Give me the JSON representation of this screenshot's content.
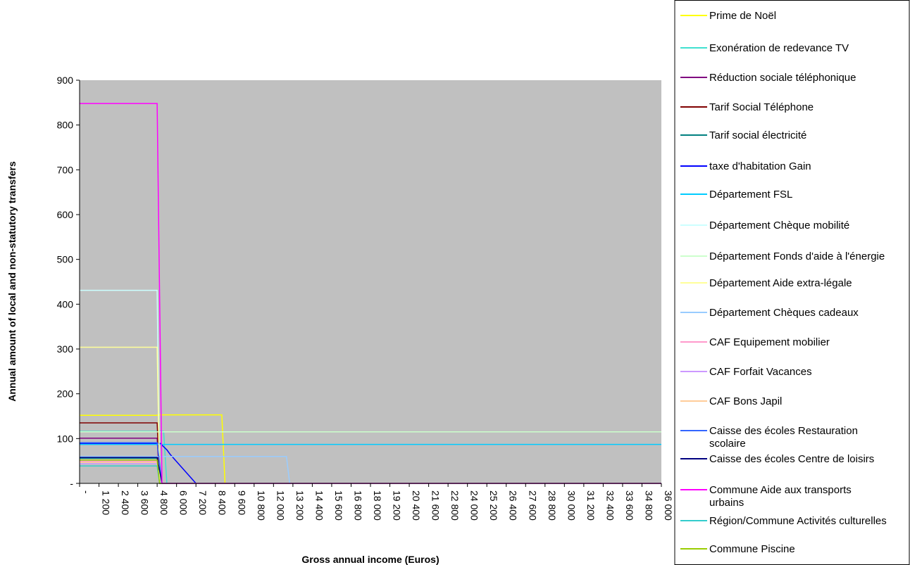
{
  "chart_data": {
    "type": "line",
    "title": "",
    "xlabel": "Gross annual income (Euros)",
    "ylabel": "Annual amount of local and non-statutory transfers",
    "xlim": [
      0,
      36000
    ],
    "ylim": [
      0,
      900
    ],
    "grid": false,
    "plot_background": "#c0c0c0",
    "legend_position": "right",
    "x_tick_labels": [
      "-",
      "1 200",
      "2 400",
      "3 600",
      "4 800",
      "6 000",
      "7 200",
      "8 400",
      "9 600",
      "10 800",
      "12 000",
      "13 200",
      "14 400",
      "15 600",
      "16 800",
      "18 000",
      "19 200",
      "20 400",
      "21 600",
      "22 800",
      "24 000",
      "25 200",
      "26 400",
      "27 600",
      "28 800",
      "30 000",
      "31 200",
      "32 400",
      "33 600",
      "34 800",
      "36 000"
    ],
    "y_ticks": [
      0,
      100,
      200,
      300,
      400,
      500,
      600,
      700,
      800,
      900
    ],
    "y_tick_labels": [
      "-",
      "100",
      "200",
      "300",
      "400",
      "500",
      "600",
      "700",
      "800",
      "900"
    ],
    "series": [
      {
        "name": "Prime de Noël",
        "color": "#ffff00",
        "x": [
          0,
          4800,
          4850,
          8800,
          9000,
          36000
        ],
        "y": [
          152,
          152,
          153,
          153,
          0,
          0
        ]
      },
      {
        "name": "Exonération de redevance TV",
        "color": "#40e0d0",
        "x": [
          0,
          4800,
          5200,
          5400,
          36000
        ],
        "y": [
          116,
          116,
          116,
          0,
          0
        ]
      },
      {
        "name": "Réduction sociale téléphonique",
        "color": "#800080",
        "x": [
          0,
          4800,
          4950,
          36000
        ],
        "y": [
          101,
          101,
          0,
          0
        ]
      },
      {
        "name": "Tarif Social Téléphone",
        "color": "#800000",
        "x": [
          0,
          4800,
          4950,
          36000
        ],
        "y": [
          135,
          135,
          0,
          0
        ]
      },
      {
        "name": "Tarif  social électricité",
        "color": "#008080",
        "x": [
          0,
          4800,
          4950,
          36000
        ],
        "y": [
          56,
          56,
          0,
          0
        ]
      },
      {
        "name": "taxe d'habitation Gain",
        "color": "#0000ff",
        "x": [
          0,
          5000,
          5400,
          5600,
          7200,
          36000
        ],
        "y": [
          89,
          89,
          75,
          65,
          0,
          0
        ]
      },
      {
        "name": "Département FSL",
        "color": "#00ccff",
        "x": [
          0,
          36000
        ],
        "y": [
          87,
          87
        ]
      },
      {
        "name": "Département Chèque mobilité",
        "color": "#ccffff",
        "x": [
          0,
          4800,
          4950,
          36000
        ],
        "y": [
          431,
          431,
          0,
          0
        ]
      },
      {
        "name": "Département Fonds d'aide à l'énergie",
        "color": "#ccffcc",
        "x": [
          0,
          36000
        ],
        "y": [
          115,
          115
        ]
      },
      {
        "name": "Département Aide extra-légale",
        "color": "#ffff99",
        "x": [
          0,
          4800,
          4950,
          36000
        ],
        "y": [
          304,
          304,
          0,
          0
        ]
      },
      {
        "name": "Département Chèques cadeaux",
        "color": "#99ccff",
        "x": [
          0,
          5000,
          12800,
          13000,
          36000
        ],
        "y": [
          60,
          60,
          60,
          0,
          0
        ]
      },
      {
        "name": "CAF Equipement mobilier",
        "color": "#ff99cc",
        "x": [
          0,
          4800,
          4950,
          36000
        ],
        "y": [
          49,
          49,
          0,
          0
        ]
      },
      {
        "name": "CAF Forfait Vacances",
        "color": "#cc99ff",
        "x": [
          0,
          4800,
          4950,
          36000
        ],
        "y": [
          44,
          44,
          0,
          0
        ]
      },
      {
        "name": "CAF Bons Japil",
        "color": "#ffcc99",
        "x": [
          0,
          4800,
          4950,
          36000
        ],
        "y": [
          47,
          47,
          0,
          0
        ]
      },
      {
        "name": "Caisse des écoles Restauration scolaire",
        "color": "#3366ff",
        "x": [
          0,
          4800,
          5100,
          36000
        ],
        "y": [
          91,
          91,
          0,
          0
        ]
      },
      {
        "name": "Caisse des écoles Centre de loisirs",
        "color": "#000080",
        "x": [
          0,
          4800,
          5100,
          36000
        ],
        "y": [
          58,
          58,
          0,
          0
        ]
      },
      {
        "name": "Commune Aide aux transports urbains",
        "color": "#ff00ff",
        "x": [
          0,
          4800,
          5100,
          36000
        ],
        "y": [
          848,
          848,
          0,
          0
        ]
      },
      {
        "name": "Région/Commune Activités culturelles",
        "color": "#33cccc",
        "x": [
          0,
          4800,
          4950,
          36000
        ],
        "y": [
          39,
          39,
          0,
          0
        ]
      },
      {
        "name": "Commune Piscine",
        "color": "#99cc00",
        "x": [
          0,
          4800,
          4950,
          36000
        ],
        "y": [
          52,
          52,
          0,
          0
        ]
      }
    ]
  }
}
